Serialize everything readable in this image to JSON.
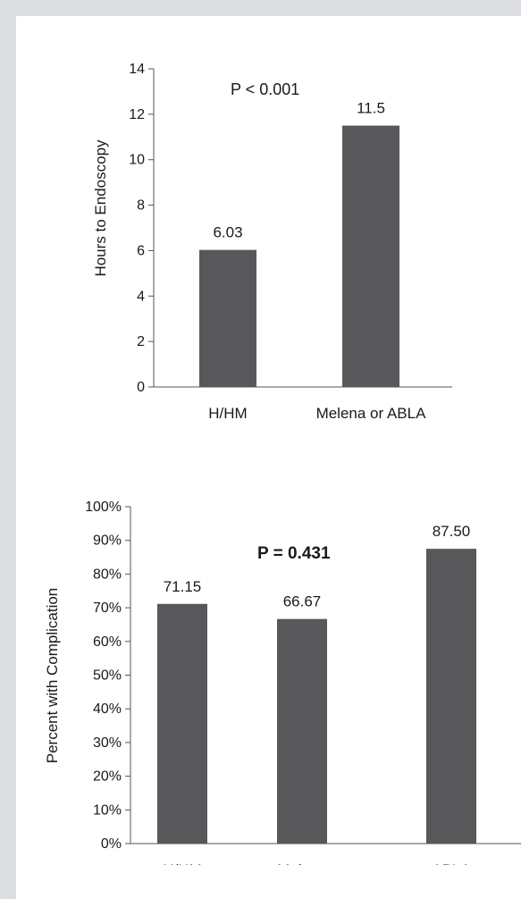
{
  "colors": {
    "page_bg": "#dcdde0",
    "panel_bg": "#ffffff",
    "bar": "#58585a",
    "axis": "#555555"
  },
  "chart_data": [
    {
      "type": "bar",
      "categories": [
        "H/HM",
        "Melena or ABLA"
      ],
      "values": [
        6.03,
        11.5
      ],
      "data_labels": [
        "6.03",
        "11.5"
      ],
      "ylabel": "Hours to Endoscopy",
      "ylim": [
        0,
        14
      ],
      "yticks": [
        0,
        2,
        4,
        6,
        8,
        10,
        12,
        14
      ],
      "ytick_labels": [
        "0",
        "2",
        "4",
        "6",
        "8",
        "10",
        "12",
        "14"
      ],
      "annotation": "P < 0.001",
      "grid": false,
      "legend": "none"
    },
    {
      "type": "bar",
      "categories": [
        "H/HM",
        "Melena",
        "ABLA"
      ],
      "values": [
        71.15,
        66.67,
        87.5
      ],
      "data_labels": [
        "71.15",
        "66.67",
        "87.50"
      ],
      "ylabel": "Percent with Complication",
      "ylim": [
        0,
        100
      ],
      "yticks": [
        0,
        10,
        20,
        30,
        40,
        50,
        60,
        70,
        80,
        90,
        100
      ],
      "ytick_labels": [
        "0%",
        "10%",
        "20%",
        "30%",
        "40%",
        "50%",
        "60%",
        "70%",
        "80%",
        "90%",
        "100%"
      ],
      "annotation": "P = 0.431",
      "grid": false,
      "legend": "none"
    }
  ]
}
